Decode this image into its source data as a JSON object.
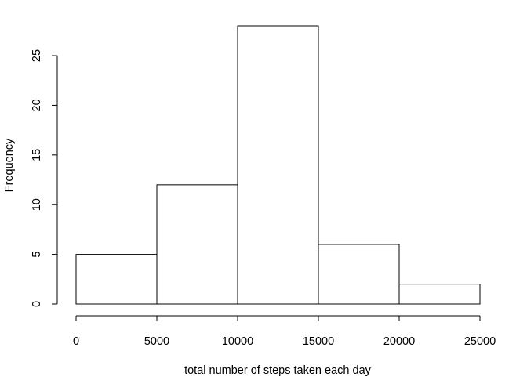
{
  "chart_data": {
    "type": "bar",
    "variant": "histogram",
    "title": "",
    "xlabel": "total number of steps taken each day",
    "ylabel": "Frequency",
    "bins": [
      {
        "from": 0,
        "to": 5000,
        "count": 5
      },
      {
        "from": 5000,
        "to": 10000,
        "count": 12
      },
      {
        "from": 10000,
        "to": 15000,
        "count": 28
      },
      {
        "from": 15000,
        "to": 20000,
        "count": 6
      },
      {
        "from": 20000,
        "to": 25000,
        "count": 2
      }
    ],
    "xticks": [
      0,
      5000,
      10000,
      15000,
      20000,
      25000
    ],
    "xtick_labels": [
      "0",
      "5000",
      "10000",
      "15000",
      "20000",
      "25000"
    ],
    "yticks": [
      0,
      5,
      10,
      15,
      20,
      25
    ],
    "ytick_labels": [
      "0",
      "5",
      "10",
      "15",
      "20",
      "25"
    ],
    "xlim": [
      0,
      25000
    ],
    "ylim": [
      0,
      28
    ],
    "grid": false,
    "legend": "none",
    "colors": {
      "bar_fill": "#ffffff",
      "bar_stroke": "#000000",
      "axis": "#000000",
      "text": "#000000"
    }
  }
}
